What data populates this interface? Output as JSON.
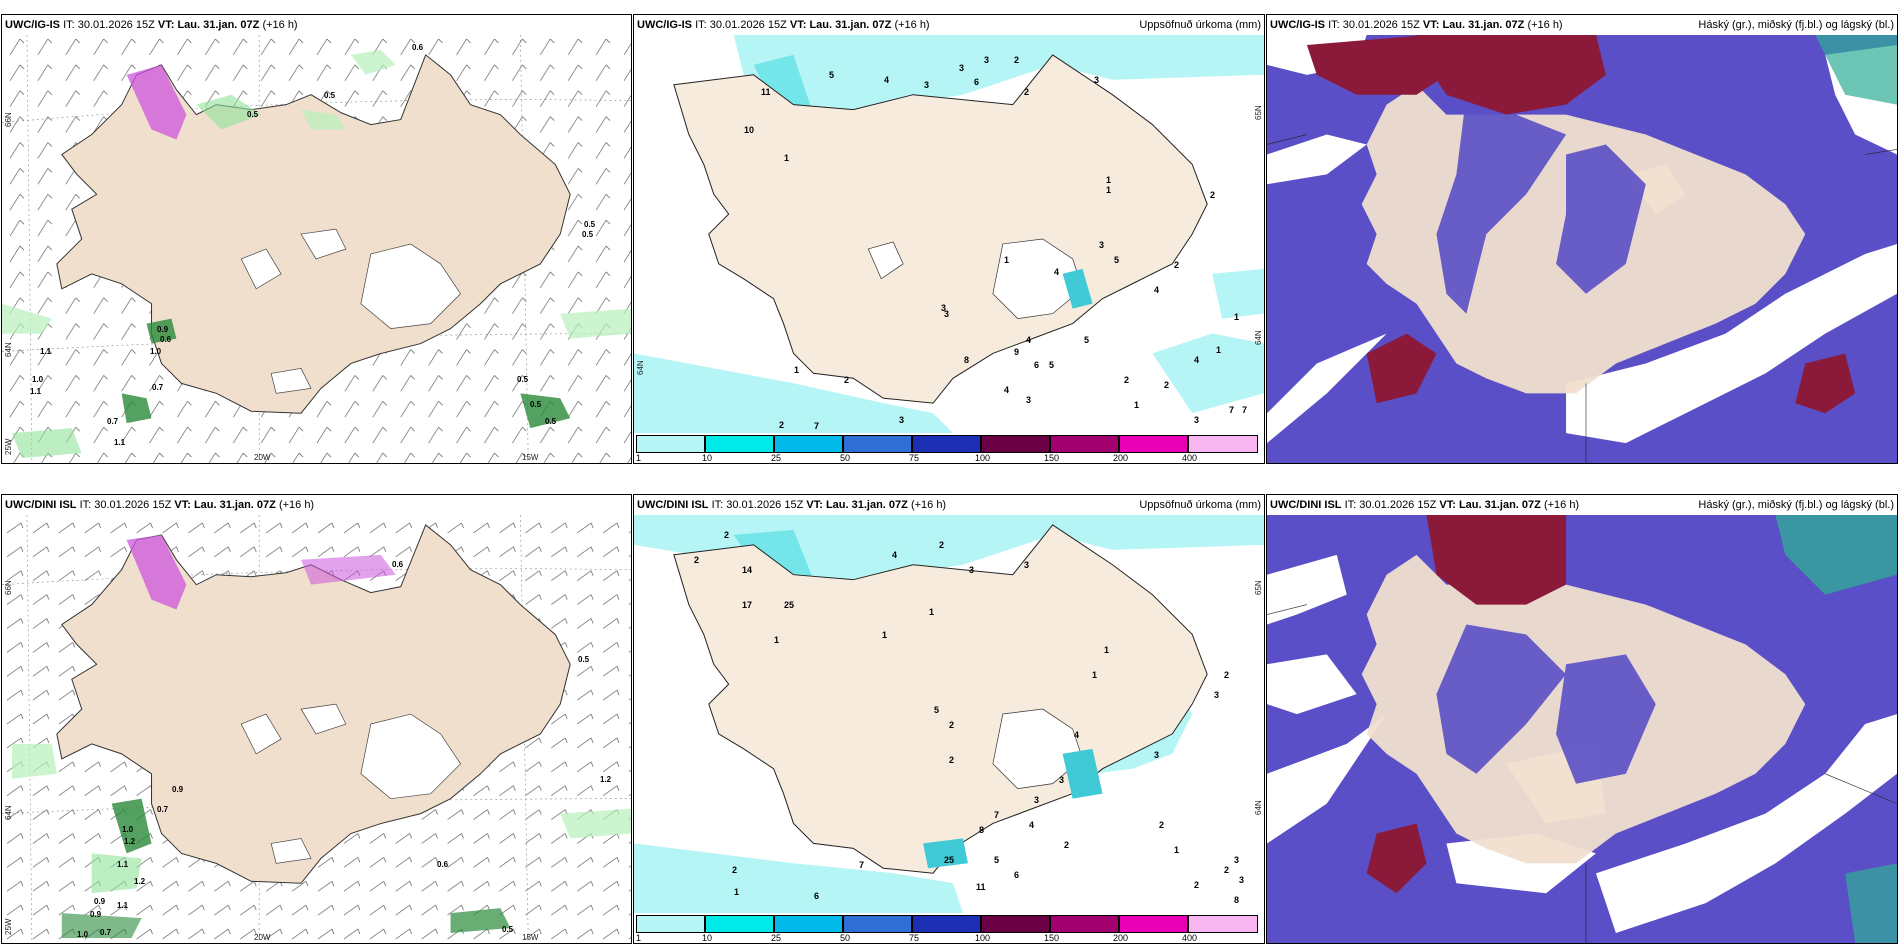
{
  "run": {
    "it_label": "IT:",
    "it_value": "30.01.2026 15Z",
    "vt_label": "VT:",
    "vt_value": "Lau. 31.jan. 07Z",
    "lead": "(+16 h)"
  },
  "rows": [
    {
      "model": "UWC/IG-IS"
    },
    {
      "model": "UWC/DINI ISL"
    }
  ],
  "panels": {
    "precip_title": "Uppsöfnuð úrkoma (mm)",
    "cloud_title": "Háský (gr.), miðský (fj.bl.) og lágský (bl.)"
  },
  "axes": {
    "lat_66": "66N",
    "lat_64": "64N",
    "lon_25": "25W",
    "lon_20": "20W",
    "lon_15": "15W",
    "lat_65_right": "65N",
    "lat_64_right": "64N"
  },
  "colorbar": {
    "labels": [
      "1",
      "10",
      "25",
      "50",
      "75",
      "100",
      "150",
      "200",
      "400"
    ],
    "colors": [
      "#b6f5f5",
      "#00e9e9",
      "#00b9e9",
      "#2f6fd6",
      "#1c2fb3",
      "#6b0044",
      "#a3006f",
      "#e900b6",
      "#f7b6f0"
    ]
  },
  "wind_labels_row1": [
    "0.6",
    "0.5",
    "0.5",
    "0.5",
    "1.1",
    "1.0",
    "1.1",
    "0.9",
    "0.6",
    "1.0",
    "0.7",
    "0.7",
    "1.1",
    "0.5",
    "0.5",
    "0.5",
    "0.5"
  ],
  "wind_labels_row2": [
    "0.6",
    "0.5",
    "0.9",
    "0.7",
    "1.0",
    "1.2",
    "1.1",
    "1.2",
    "0.9",
    "0.9",
    "1.1",
    "1.0",
    "0.7",
    "0.6",
    "0.5",
    "1.2"
  ],
  "precip_numbers_row1": [
    "5",
    "4",
    "3",
    "3",
    "3",
    "2",
    "6",
    "11",
    "10",
    "1",
    "3",
    "2",
    "1",
    "1",
    "2",
    "1",
    "3",
    "5",
    "4",
    "3",
    "4",
    "2",
    "1",
    "3",
    "5",
    "4",
    "9",
    "8",
    "6",
    "2",
    "1",
    "2",
    "7",
    "3",
    "4",
    "3",
    "5",
    "2",
    "1",
    "4",
    "7",
    "7",
    "3",
    "2",
    "1"
  ],
  "precip_numbers_row2": [
    "2",
    "2",
    "4",
    "2",
    "3",
    "3",
    "14",
    "17",
    "25",
    "1",
    "1",
    "1",
    "1",
    "1",
    "2",
    "3",
    "2",
    "5",
    "4",
    "2",
    "3",
    "3",
    "7",
    "4",
    "8",
    "5",
    "6",
    "11",
    "25",
    "7",
    "2",
    "6",
    "1",
    "2",
    "3",
    "2",
    "1",
    "3",
    "2",
    "3",
    "8",
    "2"
  ],
  "precip_colors": {
    "light": "#b6f5f5",
    "med": "#74e6ea",
    "dark": "#3fcad6"
  },
  "land_color": "#f1dfcd",
  "cloud_colors": {
    "low": "#5a4fc7",
    "mid": "#7d73da",
    "high": "#8b1a3a",
    "fringe": "#a8b8ff"
  }
}
